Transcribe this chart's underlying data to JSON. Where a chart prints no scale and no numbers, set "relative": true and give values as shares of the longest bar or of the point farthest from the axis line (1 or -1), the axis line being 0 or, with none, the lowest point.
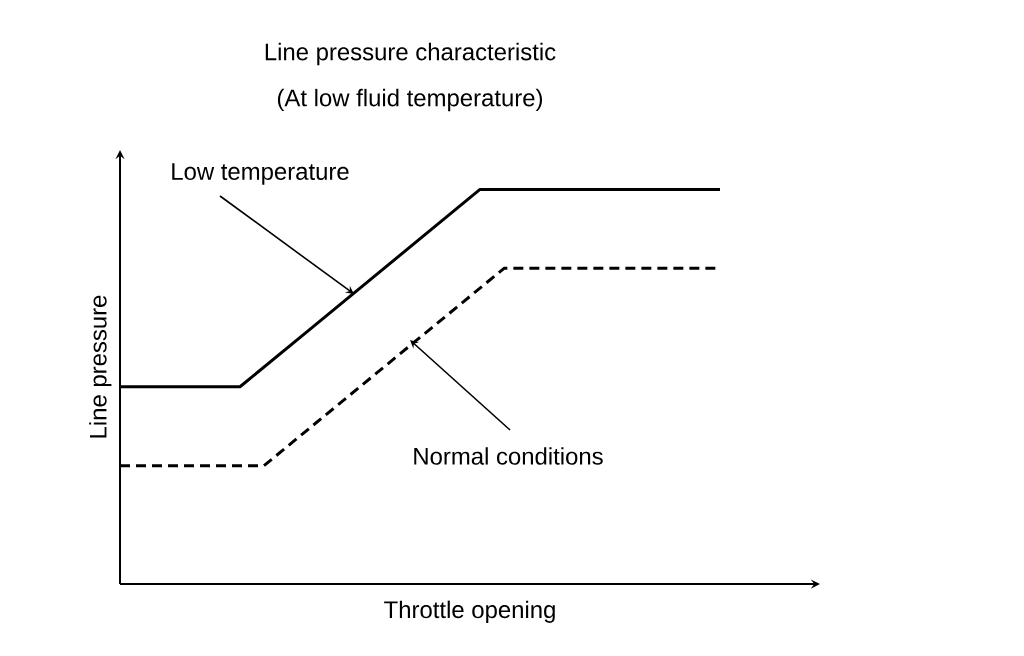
{
  "chart_data": {
    "type": "line",
    "title": "Line pressure characteristic",
    "subtitle": "(At low fluid temperature)",
    "xlabel": "Throttle opening",
    "ylabel": "Line pressure",
    "relative": true,
    "categories": [
      null,
      null,
      null,
      null,
      null,
      null,
      null,
      null,
      null,
      null,
      null,
      null,
      null,
      null,
      null,
      null,
      null,
      null,
      null,
      null,
      null,
      null,
      null,
      null,
      null,
      null
    ],
    "series": [
      {
        "color": "#000000",
        "line_style": "solid",
        "values": [
          0.5,
          0.5,
          0.5,
          0.5,
          0.5,
          0.5,
          0.55,
          0.6,
          0.65,
          0.7,
          0.75,
          0.8,
          0.85,
          0.9,
          0.95,
          1.0,
          1.0,
          1.0,
          1.0,
          1.0,
          1.0,
          1.0,
          1.0,
          1.0,
          1.0,
          1.0
        ]
      },
      {
        "color": "#000000",
        "line_style": "dashed",
        "values": [
          0.3,
          0.3,
          0.3,
          0.3,
          0.3,
          0.3,
          0.3,
          0.35,
          0.4,
          0.45,
          0.5,
          0.55,
          0.6,
          0.65,
          0.7,
          0.75,
          0.8,
          0.8,
          0.8,
          0.8,
          0.8,
          0.8,
          0.8,
          0.8,
          0.8,
          0.8
        ]
      }
    ],
    "annotations": [
      "Low temperature",
      "Normal conditions"
    ]
  }
}
